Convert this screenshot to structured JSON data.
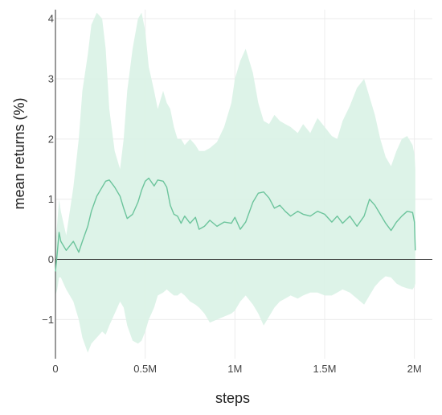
{
  "chart_data": {
    "type": "line",
    "xlabel": "steps",
    "ylabel": "mean returns (%)",
    "xlim": [
      0,
      2100000
    ],
    "ylim": [
      -1.65,
      4.15
    ],
    "grid": true,
    "x_ticks": [
      0,
      500000,
      1000000,
      1500000,
      2000000
    ],
    "x_tick_labels": [
      "0",
      "0.5M",
      "1M",
      "1.5M",
      "2M"
    ],
    "y_ticks": [
      -1,
      0,
      1,
      2,
      3,
      4
    ],
    "y_tick_labels": [
      "−1",
      "0",
      "1",
      "2",
      "3",
      "4"
    ],
    "zero_line": true,
    "colors": {
      "line": "#6cc49c",
      "band": "#d9f2e6",
      "zero_line": "#333333"
    },
    "series": [
      {
        "x": [
          0,
          10000,
          20000,
          30000,
          60000,
          100000,
          130000,
          150000,
          180000,
          200000,
          230000,
          260000,
          280000,
          300000,
          330000,
          360000,
          380000,
          400000,
          430000,
          460000,
          480000,
          500000,
          520000,
          550000,
          570000,
          600000,
          620000,
          640000,
          660000,
          680000,
          700000,
          720000,
          750000,
          780000,
          800000,
          830000,
          860000,
          900000,
          940000,
          980000,
          1000000,
          1030000,
          1060000,
          1100000,
          1130000,
          1160000,
          1190000,
          1220000,
          1250000,
          1280000,
          1310000,
          1350000,
          1380000,
          1420000,
          1460000,
          1500000,
          1540000,
          1570000,
          1600000,
          1640000,
          1680000,
          1720000,
          1750000,
          1780000,
          1810000,
          1840000,
          1870000,
          1900000,
          1930000,
          1960000,
          1990000,
          2000000,
          2005000
        ],
        "y": [
          -0.2,
          0.1,
          0.45,
          0.3,
          0.15,
          0.3,
          0.12,
          0.3,
          0.55,
          0.8,
          1.05,
          1.2,
          1.3,
          1.32,
          1.2,
          1.05,
          0.85,
          0.68,
          0.75,
          0.95,
          1.15,
          1.3,
          1.35,
          1.22,
          1.32,
          1.3,
          1.2,
          0.9,
          0.75,
          0.72,
          0.6,
          0.72,
          0.6,
          0.7,
          0.5,
          0.55,
          0.65,
          0.55,
          0.62,
          0.6,
          0.7,
          0.5,
          0.62,
          0.95,
          1.1,
          1.12,
          1.02,
          0.85,
          0.9,
          0.8,
          0.72,
          0.8,
          0.75,
          0.72,
          0.8,
          0.75,
          0.62,
          0.72,
          0.6,
          0.72,
          0.55,
          0.72,
          1.0,
          0.9,
          0.75,
          0.6,
          0.48,
          0.62,
          0.72,
          0.8,
          0.78,
          0.62,
          0.15
        ],
        "upper": [
          0.3,
          0.6,
          1.0,
          0.8,
          0.4,
          1.2,
          2.0,
          2.8,
          3.4,
          3.9,
          4.1,
          4.0,
          3.5,
          2.5,
          1.8,
          1.5,
          2.0,
          2.8,
          3.5,
          4.0,
          4.1,
          3.8,
          3.2,
          2.8,
          2.5,
          2.8,
          2.6,
          2.5,
          2.2,
          2.0,
          2.0,
          1.9,
          2.0,
          1.9,
          1.8,
          1.8,
          1.85,
          1.95,
          2.2,
          2.6,
          3.0,
          3.3,
          3.5,
          3.1,
          2.6,
          2.3,
          2.25,
          2.4,
          2.3,
          2.25,
          2.2,
          2.1,
          2.25,
          2.1,
          2.35,
          2.2,
          2.05,
          2.0,
          2.3,
          2.55,
          2.85,
          3.0,
          2.7,
          2.4,
          2.0,
          1.7,
          1.55,
          1.8,
          2.0,
          2.05,
          1.9,
          1.75,
          1.5
        ],
        "lower": [
          -0.6,
          -0.5,
          -0.3,
          -0.3,
          -0.5,
          -0.7,
          -1.0,
          -1.3,
          -1.55,
          -1.4,
          -1.3,
          -1.2,
          -1.25,
          -1.1,
          -0.9,
          -0.7,
          -0.8,
          -1.1,
          -1.35,
          -1.4,
          -1.35,
          -1.2,
          -1.0,
          -0.8,
          -0.6,
          -0.55,
          -0.5,
          -0.55,
          -0.6,
          -0.6,
          -0.55,
          -0.6,
          -0.7,
          -0.75,
          -0.8,
          -0.9,
          -1.05,
          -1.0,
          -0.95,
          -0.9,
          -0.85,
          -0.7,
          -0.6,
          -0.75,
          -0.9,
          -1.1,
          -0.95,
          -0.8,
          -0.7,
          -0.65,
          -0.6,
          -0.65,
          -0.6,
          -0.55,
          -0.55,
          -0.6,
          -0.6,
          -0.55,
          -0.5,
          -0.55,
          -0.65,
          -0.75,
          -0.6,
          -0.45,
          -0.35,
          -0.28,
          -0.3,
          -0.4,
          -0.45,
          -0.48,
          -0.5,
          -0.45,
          -0.4
        ]
      }
    ]
  }
}
